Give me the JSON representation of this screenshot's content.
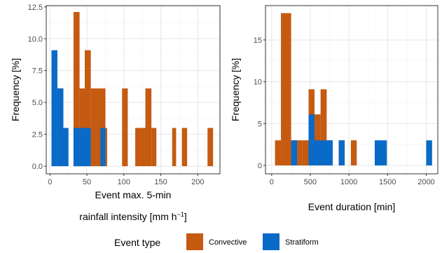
{
  "colors": {
    "convective": "#C55A11",
    "stratiform": "#0A6AC7",
    "panel_border": "#333333",
    "grid_major": "#e6e6e6",
    "grid_minor": "#f2f2f2"
  },
  "legend": {
    "title": "Event type",
    "position": "bottom",
    "items": [
      {
        "label": "Convective",
        "key": "convective"
      },
      {
        "label": "Stratiform",
        "key": "stratiform"
      }
    ]
  },
  "chart_data": [
    {
      "type": "bar",
      "stacked": false,
      "xlabel_line1": "Event max. 5-min",
      "xlabel_line2_main": "rainfall intensity [mm h",
      "xlabel_line2_sup": "−1",
      "xlabel_line2_end": "]",
      "ylabel": "Frequency [%]",
      "xlim": [
        -5,
        230
      ],
      "ylim": [
        -0.6,
        12.6
      ],
      "xticks": [
        0,
        50,
        100,
        150,
        200
      ],
      "yticks": [
        0.0,
        2.5,
        5.0,
        7.5,
        10.0,
        12.5
      ],
      "ytick_labels": [
        "0.0",
        "2.5",
        "5.0",
        "7.5",
        "10.0",
        "12.5"
      ],
      "grid": true,
      "series": [
        {
          "name": "Convective",
          "key": "convective",
          "bins": [
            {
              "x0": 10.1,
              "x1": 18.2,
              "value": 6.1
            },
            {
              "x0": 31.9,
              "x1": 40.1,
              "value": 12.1
            },
            {
              "x0": 40.1,
              "x1": 47.1,
              "value": 6.1
            },
            {
              "x0": 47.1,
              "x1": 55.3,
              "value": 9.1
            },
            {
              "x0": 55.3,
              "x1": 62.3,
              "value": 6.1
            },
            {
              "x0": 62.3,
              "x1": 75.1,
              "value": 6.1
            },
            {
              "x0": 75.1,
              "x1": 77.4,
              "value": 3.0
            },
            {
              "x0": 97.6,
              "x1": 105.3,
              "value": 6.1
            },
            {
              "x0": 115.4,
              "x1": 129.1,
              "value": 3.0
            },
            {
              "x0": 129.1,
              "x1": 137.3,
              "value": 6.1
            },
            {
              "x0": 137.3,
              "x1": 144.0,
              "value": 3.0
            },
            {
              "x0": 165.4,
              "x1": 170.7,
              "value": 3.0
            },
            {
              "x0": 178.5,
              "x1": 185.6,
              "value": 3.0
            },
            {
              "x0": 213.2,
              "x1": 220.7,
              "value": 3.0
            }
          ]
        },
        {
          "name": "Stratiform",
          "key": "stratiform",
          "bins": [
            {
              "x0": 2.1,
              "x1": 10.1,
              "value": 9.1
            },
            {
              "x0": 10.1,
              "x1": 18.2,
              "value": 6.1
            },
            {
              "x0": 18.2,
              "x1": 25.1,
              "value": 3.0
            },
            {
              "x0": 31.9,
              "x1": 40.1,
              "value": 3.0
            },
            {
              "x0": 40.1,
              "x1": 55.3,
              "value": 3.0
            },
            {
              "x0": 68.3,
              "x1": 75.1,
              "value": 3.0
            }
          ]
        }
      ]
    },
    {
      "type": "bar",
      "stacked": false,
      "xlabel": "Event duration [min]",
      "ylabel": "Frequency [%]",
      "xlim": [
        -80,
        2150
      ],
      "ylim": [
        -1.0,
        19.1
      ],
      "xticks": [
        0,
        500,
        1000,
        1500,
        2000
      ],
      "yticks": [
        0,
        5,
        10,
        15
      ],
      "ytick_labels": [
        "0",
        "5",
        "10",
        "15"
      ],
      "grid": true,
      "series": [
        {
          "name": "Convective",
          "key": "convective",
          "bins": [
            {
              "x0": 43,
              "x1": 120,
              "value": 3.0
            },
            {
              "x0": 120,
              "x1": 252,
              "value": 18.2
            },
            {
              "x0": 252,
              "x1": 330,
              "value": 3.0
            },
            {
              "x0": 330,
              "x1": 399,
              "value": 3.0
            },
            {
              "x0": 399,
              "x1": 478,
              "value": 3.0
            },
            {
              "x0": 478,
              "x1": 555,
              "value": 9.1
            },
            {
              "x0": 555,
              "x1": 633,
              "value": 6.1
            },
            {
              "x0": 633,
              "x1": 712,
              "value": 9.1
            },
            {
              "x0": 712,
              "x1": 790,
              "value": 3.0
            },
            {
              "x0": 868,
              "x1": 945,
              "value": 3.0
            },
            {
              "x0": 1025,
              "x1": 1101,
              "value": 3.0
            }
          ]
        },
        {
          "name": "Stratiform",
          "key": "stratiform",
          "bins": [
            {
              "x0": 252,
              "x1": 330,
              "value": 3.0
            },
            {
              "x0": 478,
              "x1": 555,
              "value": 6.1
            },
            {
              "x0": 555,
              "x1": 790,
              "value": 3.0
            },
            {
              "x0": 868,
              "x1": 945,
              "value": 3.0
            },
            {
              "x0": 1334,
              "x1": 1491,
              "value": 3.0
            },
            {
              "x0": 2000,
              "x1": 2076,
              "value": 3.0
            }
          ]
        }
      ]
    }
  ]
}
